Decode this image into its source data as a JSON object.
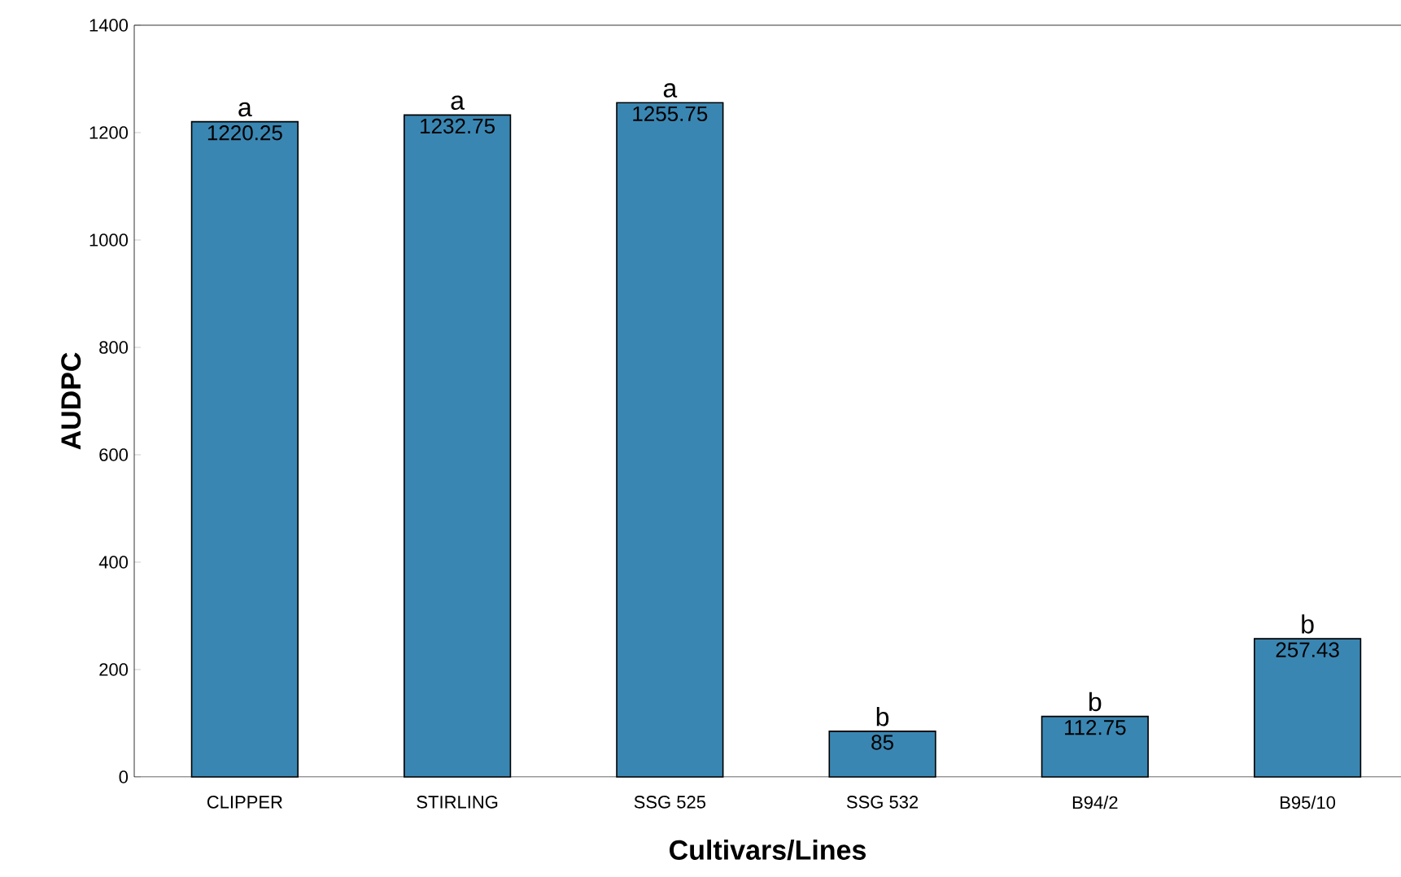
{
  "chart_data": {
    "type": "bar",
    "xlabel": "Cultivars/Lines",
    "ylabel": "AUDPC",
    "categories": [
      "CLIPPER",
      "STIRLING",
      "SSG 525",
      "SSG 532",
      "B94/2",
      "B95/10"
    ],
    "values": [
      1220.25,
      1232.75,
      1255.75,
      85,
      112.75,
      257.43
    ],
    "color": "#3a86b2",
    "data_labels": true,
    "ylim": [
      0,
      1400
    ],
    "yticks": [
      0,
      200,
      400,
      600,
      800,
      1000,
      1200,
      1400
    ],
    "annotations": [
      {
        "text": "a",
        "x": "CLIPPER",
        "y": 1220.25
      },
      {
        "text": "a",
        "x": "STIRLING",
        "y": 1232.75
      },
      {
        "text": "a",
        "x": "SSG 525",
        "y": 1255.75
      },
      {
        "text": "b",
        "x": "SSG 532",
        "y": 85
      },
      {
        "text": "b",
        "x": "B94/2",
        "y": 112.75
      },
      {
        "text": "b",
        "x": "B95/10",
        "y": 257.43
      }
    ]
  }
}
